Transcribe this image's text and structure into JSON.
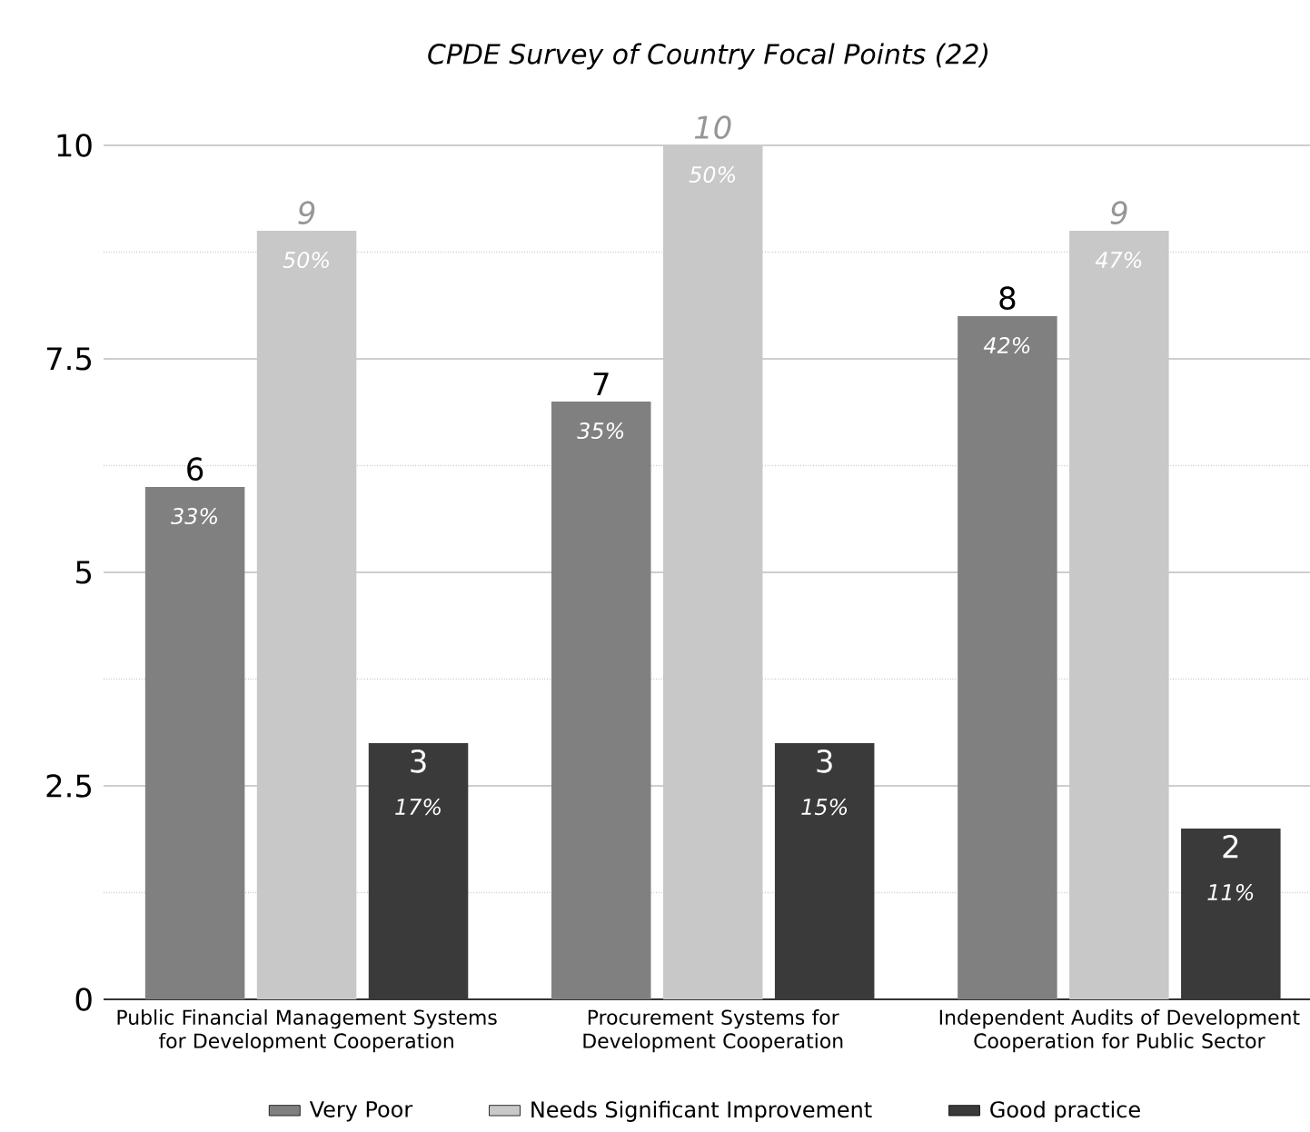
{
  "chart_data": {
    "type": "bar",
    "title": "CPDE Survey of Country Focal Points (22)",
    "categories": [
      "Public Financial Management Systems for Development Cooperation",
      "Procurement Systems for Development Cooperation",
      "Independent Audits of Development Cooperation for Public Sector"
    ],
    "series": [
      {
        "name": "Very Poor",
        "color": "#808080",
        "values": [
          6,
          7,
          8
        ]
      },
      {
        "name": "Needs Significant Improvement",
        "color": "#c8c8c8",
        "values": [
          9,
          10,
          9
        ]
      },
      {
        "name": "Good practice",
        "color": "#3a3a3a",
        "values": [
          3,
          3,
          2
        ]
      }
    ],
    "annotations": [
      "33%",
      "50%",
      "17%",
      "35%",
      "50%",
      "15%",
      "42%",
      "47%",
      "11%"
    ],
    "ylim": [
      0,
      10
    ],
    "yticks": [
      0,
      {
        "value": 1.25,
        "label": null
      },
      {
        "value": 2.5,
        "label": "2.5"
      },
      {
        "value": 3.75,
        "label": null
      },
      5,
      {
        "value": 6.25,
        "label": null
      },
      {
        "value": 7.5,
        "label": "7.5"
      },
      {
        "value": 8.75,
        "label": null
      },
      10
    ],
    "grid": "y",
    "legend": "bottom",
    "data_labels": true
  }
}
